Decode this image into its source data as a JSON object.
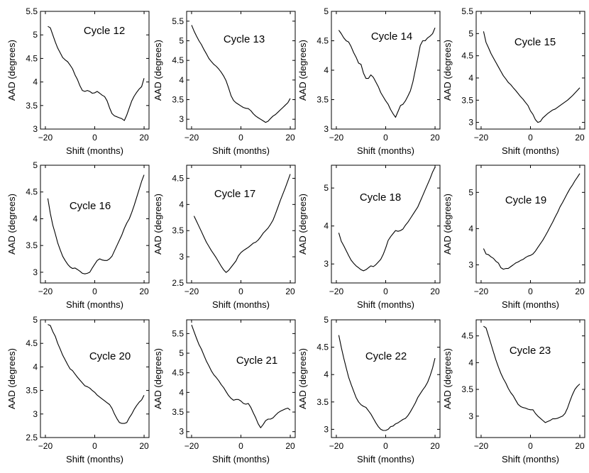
{
  "chart_data": [
    {
      "type": "line",
      "title": "Cycle 12",
      "xlabel": "Shift (months)",
      "ylabel": "AAD (degrees)",
      "xlim": [
        -22,
        22
      ],
      "ylim": [
        3,
        5.5
      ],
      "xticks": [
        -20,
        0,
        20
      ],
      "yticks": [
        3,
        3.5,
        4,
        4.5,
        5,
        5.5
      ],
      "x": [
        -19,
        -18,
        -17,
        -16,
        -15,
        -14,
        -13,
        -12,
        -11,
        -10,
        -9,
        -8,
        -7,
        -6,
        -5,
        -4,
        -3,
        -2,
        -1,
        0,
        1,
        2,
        3,
        4,
        5,
        6,
        7,
        8,
        9,
        10,
        11,
        12,
        13,
        14,
        15,
        16,
        17,
        18,
        19,
        20
      ],
      "values": [
        5.18,
        5.15,
        5.0,
        4.85,
        4.72,
        4.62,
        4.52,
        4.47,
        4.43,
        4.36,
        4.28,
        4.15,
        4.05,
        3.92,
        3.82,
        3.8,
        3.82,
        3.8,
        3.76,
        3.77,
        3.8,
        3.76,
        3.72,
        3.69,
        3.6,
        3.45,
        3.33,
        3.28,
        3.26,
        3.24,
        3.22,
        3.18,
        3.3,
        3.45,
        3.6,
        3.7,
        3.78,
        3.85,
        3.9,
        4.08
      ]
    },
    {
      "type": "line",
      "title": "Cycle 13",
      "xlabel": "Shift (months)",
      "ylabel": "AAD (degrees)",
      "xlim": [
        -22,
        22
      ],
      "ylim": [
        2.75,
        5.75
      ],
      "xticks": [
        -20,
        0,
        20
      ],
      "yticks": [
        3,
        3.5,
        4,
        4.5,
        5,
        5.5
      ],
      "x": [
        -20,
        -19,
        -18,
        -17,
        -16,
        -15,
        -14,
        -13,
        -12,
        -11,
        -10,
        -9,
        -8,
        -7,
        -6,
        -5,
        -4,
        -3,
        -2,
        -1,
        0,
        1,
        2,
        3,
        4,
        5,
        6,
        7,
        8,
        9,
        10,
        11,
        12,
        13,
        14,
        15,
        16,
        17,
        18,
        19,
        20
      ],
      "values": [
        5.4,
        5.25,
        5.12,
        5.0,
        4.9,
        4.78,
        4.67,
        4.55,
        4.47,
        4.4,
        4.35,
        4.28,
        4.2,
        4.1,
        3.98,
        3.8,
        3.6,
        3.48,
        3.42,
        3.38,
        3.34,
        3.3,
        3.28,
        3.27,
        3.22,
        3.14,
        3.08,
        3.04,
        3.0,
        2.96,
        2.92,
        2.95,
        3.02,
        3.08,
        3.12,
        3.18,
        3.24,
        3.3,
        3.36,
        3.42,
        3.53
      ]
    },
    {
      "type": "line",
      "title": "Cycle 14",
      "xlabel": "Shift (months)",
      "ylabel": "AAD (degrees)",
      "xlim": [
        -22,
        22
      ],
      "ylim": [
        3,
        5
      ],
      "xticks": [
        -20,
        0,
        20
      ],
      "yticks": [
        3,
        3.5,
        4,
        4.5,
        5
      ],
      "x": [
        -19,
        -18,
        -17,
        -16,
        -15,
        -14,
        -13,
        -12,
        -11,
        -10,
        -9,
        -8,
        -7,
        -6,
        -5,
        -4,
        -3,
        -2,
        -1,
        0,
        1,
        2,
        3,
        4,
        5,
        6,
        7,
        8,
        9,
        10,
        11,
        12,
        13,
        14,
        15,
        16,
        17,
        18,
        19,
        20
      ],
      "values": [
        4.68,
        4.62,
        4.55,
        4.5,
        4.48,
        4.4,
        4.3,
        4.22,
        4.12,
        4.1,
        3.95,
        3.86,
        3.86,
        3.92,
        3.88,
        3.8,
        3.72,
        3.62,
        3.55,
        3.48,
        3.42,
        3.33,
        3.26,
        3.2,
        3.3,
        3.4,
        3.42,
        3.48,
        3.56,
        3.65,
        3.8,
        4.0,
        4.2,
        4.42,
        4.5,
        4.5,
        4.55,
        4.58,
        4.62,
        4.72
      ]
    },
    {
      "type": "line",
      "title": "Cycle 15",
      "xlabel": "Shift (months)",
      "ylabel": "AAD (degrees)",
      "xlim": [
        -22,
        22
      ],
      "ylim": [
        2.85,
        5.5
      ],
      "xticks": [
        -20,
        0,
        20
      ],
      "yticks": [
        3,
        3.5,
        4,
        4.5,
        5,
        5.5
      ],
      "x": [
        -19,
        -18,
        -17,
        -16,
        -15,
        -14,
        -13,
        -12,
        -11,
        -10,
        -9,
        -8,
        -7,
        -6,
        -5,
        -4,
        -3,
        -2,
        -1,
        0,
        1,
        2,
        3,
        4,
        5,
        6,
        7,
        8,
        9,
        10,
        11,
        12,
        13,
        14,
        15,
        16,
        17,
        18,
        19,
        20
      ],
      "values": [
        5.05,
        4.8,
        4.68,
        4.55,
        4.45,
        4.35,
        4.25,
        4.15,
        4.05,
        3.98,
        3.9,
        3.85,
        3.78,
        3.72,
        3.65,
        3.58,
        3.52,
        3.45,
        3.38,
        3.26,
        3.18,
        3.06,
        3.0,
        3.02,
        3.1,
        3.15,
        3.2,
        3.24,
        3.28,
        3.3,
        3.34,
        3.38,
        3.42,
        3.46,
        3.5,
        3.55,
        3.6,
        3.66,
        3.72,
        3.78
      ]
    },
    {
      "type": "line",
      "title": "Cycle 16",
      "xlabel": "Shift (months)",
      "ylabel": "AAD (degrees)",
      "xlim": [
        -22,
        22
      ],
      "ylim": [
        2.8,
        5
      ],
      "xticks": [
        -20,
        0,
        20
      ],
      "yticks": [
        3,
        3.5,
        4,
        4.5,
        5
      ],
      "x": [
        -19,
        -18,
        -17,
        -16,
        -15,
        -14,
        -13,
        -12,
        -11,
        -10,
        -9,
        -8,
        -7,
        -6,
        -5,
        -4,
        -3,
        -2,
        -1,
        0,
        1,
        2,
        3,
        4,
        5,
        6,
        7,
        8,
        9,
        10,
        11,
        12,
        13,
        14,
        15,
        16,
        17,
        18,
        19,
        20
      ],
      "values": [
        4.38,
        4.1,
        3.88,
        3.72,
        3.55,
        3.42,
        3.3,
        3.22,
        3.15,
        3.1,
        3.07,
        3.08,
        3.05,
        3.02,
        2.98,
        2.97,
        2.98,
        3.0,
        3.08,
        3.15,
        3.22,
        3.25,
        3.23,
        3.22,
        3.22,
        3.25,
        3.3,
        3.4,
        3.5,
        3.6,
        3.7,
        3.82,
        3.92,
        4.0,
        4.12,
        4.25,
        4.4,
        4.55,
        4.7,
        4.82
      ]
    },
    {
      "type": "line",
      "title": "Cycle 17",
      "xlabel": "Shift (months)",
      "ylabel": "AAD (degrees)",
      "xlim": [
        -22,
        22
      ],
      "ylim": [
        2.5,
        4.75
      ],
      "xticks": [
        -20,
        0,
        20
      ],
      "yticks": [
        2.5,
        3,
        3.5,
        4,
        4.5
      ],
      "x": [
        -19,
        -18,
        -17,
        -16,
        -15,
        -14,
        -13,
        -12,
        -11,
        -10,
        -9,
        -8,
        -7,
        -6,
        -5,
        -4,
        -3,
        -2,
        -1,
        0,
        1,
        2,
        3,
        4,
        5,
        6,
        7,
        8,
        9,
        10,
        11,
        12,
        13,
        14,
        15,
        16,
        17,
        18,
        19,
        20
      ],
      "values": [
        3.78,
        3.68,
        3.58,
        3.48,
        3.38,
        3.28,
        3.2,
        3.12,
        3.05,
        2.98,
        2.9,
        2.82,
        2.75,
        2.7,
        2.74,
        2.8,
        2.86,
        2.92,
        3.02,
        3.08,
        3.12,
        3.15,
        3.18,
        3.22,
        3.26,
        3.28,
        3.32,
        3.38,
        3.45,
        3.5,
        3.55,
        3.62,
        3.7,
        3.82,
        3.95,
        4.08,
        4.2,
        4.32,
        4.45,
        4.58
      ]
    },
    {
      "type": "line",
      "title": "Cycle 18",
      "xlabel": "Shift (months)",
      "ylabel": "AAD (degrees)",
      "xlim": [
        -22,
        22
      ],
      "ylim": [
        2.5,
        5.6
      ],
      "xticks": [
        -20,
        0,
        20
      ],
      "yticks": [
        3,
        4,
        5
      ],
      "x": [
        -19,
        -18,
        -17,
        -16,
        -15,
        -14,
        -13,
        -12,
        -11,
        -10,
        -9,
        -8,
        -7,
        -6,
        -5,
        -4,
        -3,
        -2,
        -1,
        0,
        1,
        2,
        3,
        4,
        5,
        6,
        7,
        8,
        9,
        10,
        11,
        12,
        13,
        14,
        15,
        16,
        17,
        18,
        19,
        20
      ],
      "values": [
        3.82,
        3.6,
        3.48,
        3.35,
        3.22,
        3.1,
        3.02,
        2.95,
        2.9,
        2.85,
        2.82,
        2.85,
        2.9,
        2.95,
        2.93,
        2.98,
        3.05,
        3.12,
        3.25,
        3.42,
        3.62,
        3.72,
        3.8,
        3.88,
        3.86,
        3.88,
        3.92,
        4.02,
        4.1,
        4.2,
        4.3,
        4.4,
        4.5,
        4.65,
        4.8,
        4.95,
        5.1,
        5.25,
        5.42,
        5.55
      ]
    },
    {
      "type": "line",
      "title": "Cycle 19",
      "xlabel": "Shift (months)",
      "ylabel": "AAD (degrees)",
      "xlim": [
        -22,
        22
      ],
      "ylim": [
        2.5,
        5.75
      ],
      "xticks": [
        -20,
        0,
        20
      ],
      "yticks": [
        3,
        4,
        5
      ],
      "x": [
        -19,
        -18,
        -17,
        -16,
        -15,
        -14,
        -13,
        -12,
        -11,
        -10,
        -9,
        -8,
        -7,
        -6,
        -5,
        -4,
        -3,
        -2,
        -1,
        0,
        1,
        2,
        3,
        4,
        5,
        6,
        7,
        8,
        9,
        10,
        11,
        12,
        13,
        14,
        15,
        16,
        17,
        18,
        19,
        20
      ],
      "values": [
        3.45,
        3.3,
        3.28,
        3.22,
        3.18,
        3.1,
        3.05,
        2.92,
        2.88,
        2.9,
        2.9,
        2.95,
        3.0,
        3.05,
        3.08,
        3.12,
        3.15,
        3.2,
        3.24,
        3.26,
        3.3,
        3.38,
        3.48,
        3.58,
        3.68,
        3.8,
        3.92,
        4.05,
        4.18,
        4.32,
        4.45,
        4.6,
        4.72,
        4.85,
        4.98,
        5.1,
        5.2,
        5.32,
        5.42,
        5.52
      ]
    },
    {
      "type": "line",
      "title": "Cycle 20",
      "xlabel": "Shift (months)",
      "ylabel": "AAD (degrees)",
      "xlim": [
        -22,
        22
      ],
      "ylim": [
        2.5,
        5
      ],
      "xticks": [
        -20,
        0,
        20
      ],
      "yticks": [
        2.5,
        3,
        3.5,
        4,
        4.5,
        5
      ],
      "x": [
        -19,
        -18,
        -17,
        -16,
        -15,
        -14,
        -13,
        -12,
        -11,
        -10,
        -9,
        -8,
        -7,
        -6,
        -5,
        -4,
        -3,
        -2,
        -1,
        0,
        1,
        2,
        3,
        4,
        5,
        6,
        7,
        8,
        9,
        10,
        11,
        12,
        13,
        14,
        15,
        16,
        17,
        18,
        19,
        20
      ],
      "values": [
        4.9,
        4.88,
        4.75,
        4.65,
        4.5,
        4.38,
        4.25,
        4.15,
        4.05,
        3.96,
        3.92,
        3.85,
        3.78,
        3.72,
        3.66,
        3.6,
        3.58,
        3.55,
        3.5,
        3.46,
        3.4,
        3.36,
        3.32,
        3.28,
        3.24,
        3.2,
        3.12,
        3.0,
        2.9,
        2.82,
        2.8,
        2.8,
        2.82,
        2.92,
        3.0,
        3.1,
        3.18,
        3.25,
        3.3,
        3.4
      ]
    },
    {
      "type": "line",
      "title": "Cycle 21",
      "xlabel": "Shift (months)",
      "ylabel": "AAD (degrees)",
      "xlim": [
        -22,
        22
      ],
      "ylim": [
        2.85,
        5.85
      ],
      "xticks": [
        -20,
        0,
        20
      ],
      "yticks": [
        3,
        3.5,
        4,
        4.5,
        5,
        5.5
      ],
      "x": [
        -20,
        -19,
        -18,
        -17,
        -16,
        -15,
        -14,
        -13,
        -12,
        -11,
        -10,
        -9,
        -8,
        -7,
        -6,
        -5,
        -4,
        -3,
        -2,
        -1,
        0,
        1,
        2,
        3,
        4,
        5,
        6,
        7,
        8,
        9,
        10,
        11,
        12,
        13,
        14,
        15,
        16,
        17,
        18,
        19,
        20
      ],
      "values": [
        5.72,
        5.55,
        5.38,
        5.22,
        5.1,
        4.95,
        4.8,
        4.68,
        4.55,
        4.45,
        4.38,
        4.3,
        4.2,
        4.12,
        4.02,
        3.92,
        3.85,
        3.8,
        3.82,
        3.82,
        3.78,
        3.72,
        3.7,
        3.72,
        3.62,
        3.48,
        3.35,
        3.2,
        3.1,
        3.18,
        3.28,
        3.32,
        3.32,
        3.35,
        3.42,
        3.48,
        3.52,
        3.55,
        3.58,
        3.6,
        3.55
      ]
    },
    {
      "type": "line",
      "title": "Cycle 22",
      "xlabel": "Shift (months)",
      "ylabel": "AAD (degrees)",
      "xlim": [
        -22,
        22
      ],
      "ylim": [
        2.85,
        5
      ],
      "xticks": [
        -20,
        0,
        20
      ],
      "yticks": [
        3,
        3.5,
        4,
        4.5,
        5
      ],
      "x": [
        -19,
        -18,
        -17,
        -16,
        -15,
        -14,
        -13,
        -12,
        -11,
        -10,
        -9,
        -8,
        -7,
        -6,
        -5,
        -4,
        -3,
        -2,
        -1,
        0,
        1,
        2,
        3,
        4,
        5,
        6,
        7,
        8,
        9,
        10,
        11,
        12,
        13,
        14,
        15,
        16,
        17,
        18,
        19,
        20
      ],
      "values": [
        4.72,
        4.5,
        4.3,
        4.12,
        3.95,
        3.82,
        3.7,
        3.58,
        3.5,
        3.45,
        3.42,
        3.4,
        3.34,
        3.28,
        3.2,
        3.12,
        3.05,
        3.0,
        2.98,
        2.98,
        3.0,
        3.05,
        3.06,
        3.1,
        3.12,
        3.15,
        3.18,
        3.2,
        3.25,
        3.32,
        3.4,
        3.48,
        3.58,
        3.65,
        3.72,
        3.78,
        3.86,
        3.98,
        4.12,
        4.3
      ]
    },
    {
      "type": "line",
      "title": "Cycle 23",
      "xlabel": "Shift (months)",
      "ylabel": "AAD (degrees)",
      "xlim": [
        -22,
        22
      ],
      "ylim": [
        2.6,
        4.8
      ],
      "xticks": [
        -20,
        0,
        20
      ],
      "yticks": [
        3,
        3.5,
        4,
        4.5
      ],
      "x": [
        -19,
        -18,
        -17,
        -16,
        -15,
        -14,
        -13,
        -12,
        -11,
        -10,
        -9,
        -8,
        -7,
        -6,
        -5,
        -4,
        -3,
        -2,
        -1,
        0,
        1,
        2,
        3,
        4,
        5,
        6,
        7,
        8,
        9,
        10,
        11,
        12,
        13,
        14,
        15,
        16,
        17,
        18,
        19,
        20
      ],
      "values": [
        4.68,
        4.65,
        4.5,
        4.35,
        4.2,
        4.05,
        3.92,
        3.8,
        3.7,
        3.62,
        3.52,
        3.44,
        3.38,
        3.3,
        3.22,
        3.18,
        3.16,
        3.15,
        3.13,
        3.12,
        3.12,
        3.05,
        3.0,
        2.96,
        2.92,
        2.88,
        2.9,
        2.92,
        2.95,
        2.95,
        2.96,
        2.98,
        3.0,
        3.05,
        3.15,
        3.28,
        3.4,
        3.5,
        3.56,
        3.6
      ]
    }
  ]
}
